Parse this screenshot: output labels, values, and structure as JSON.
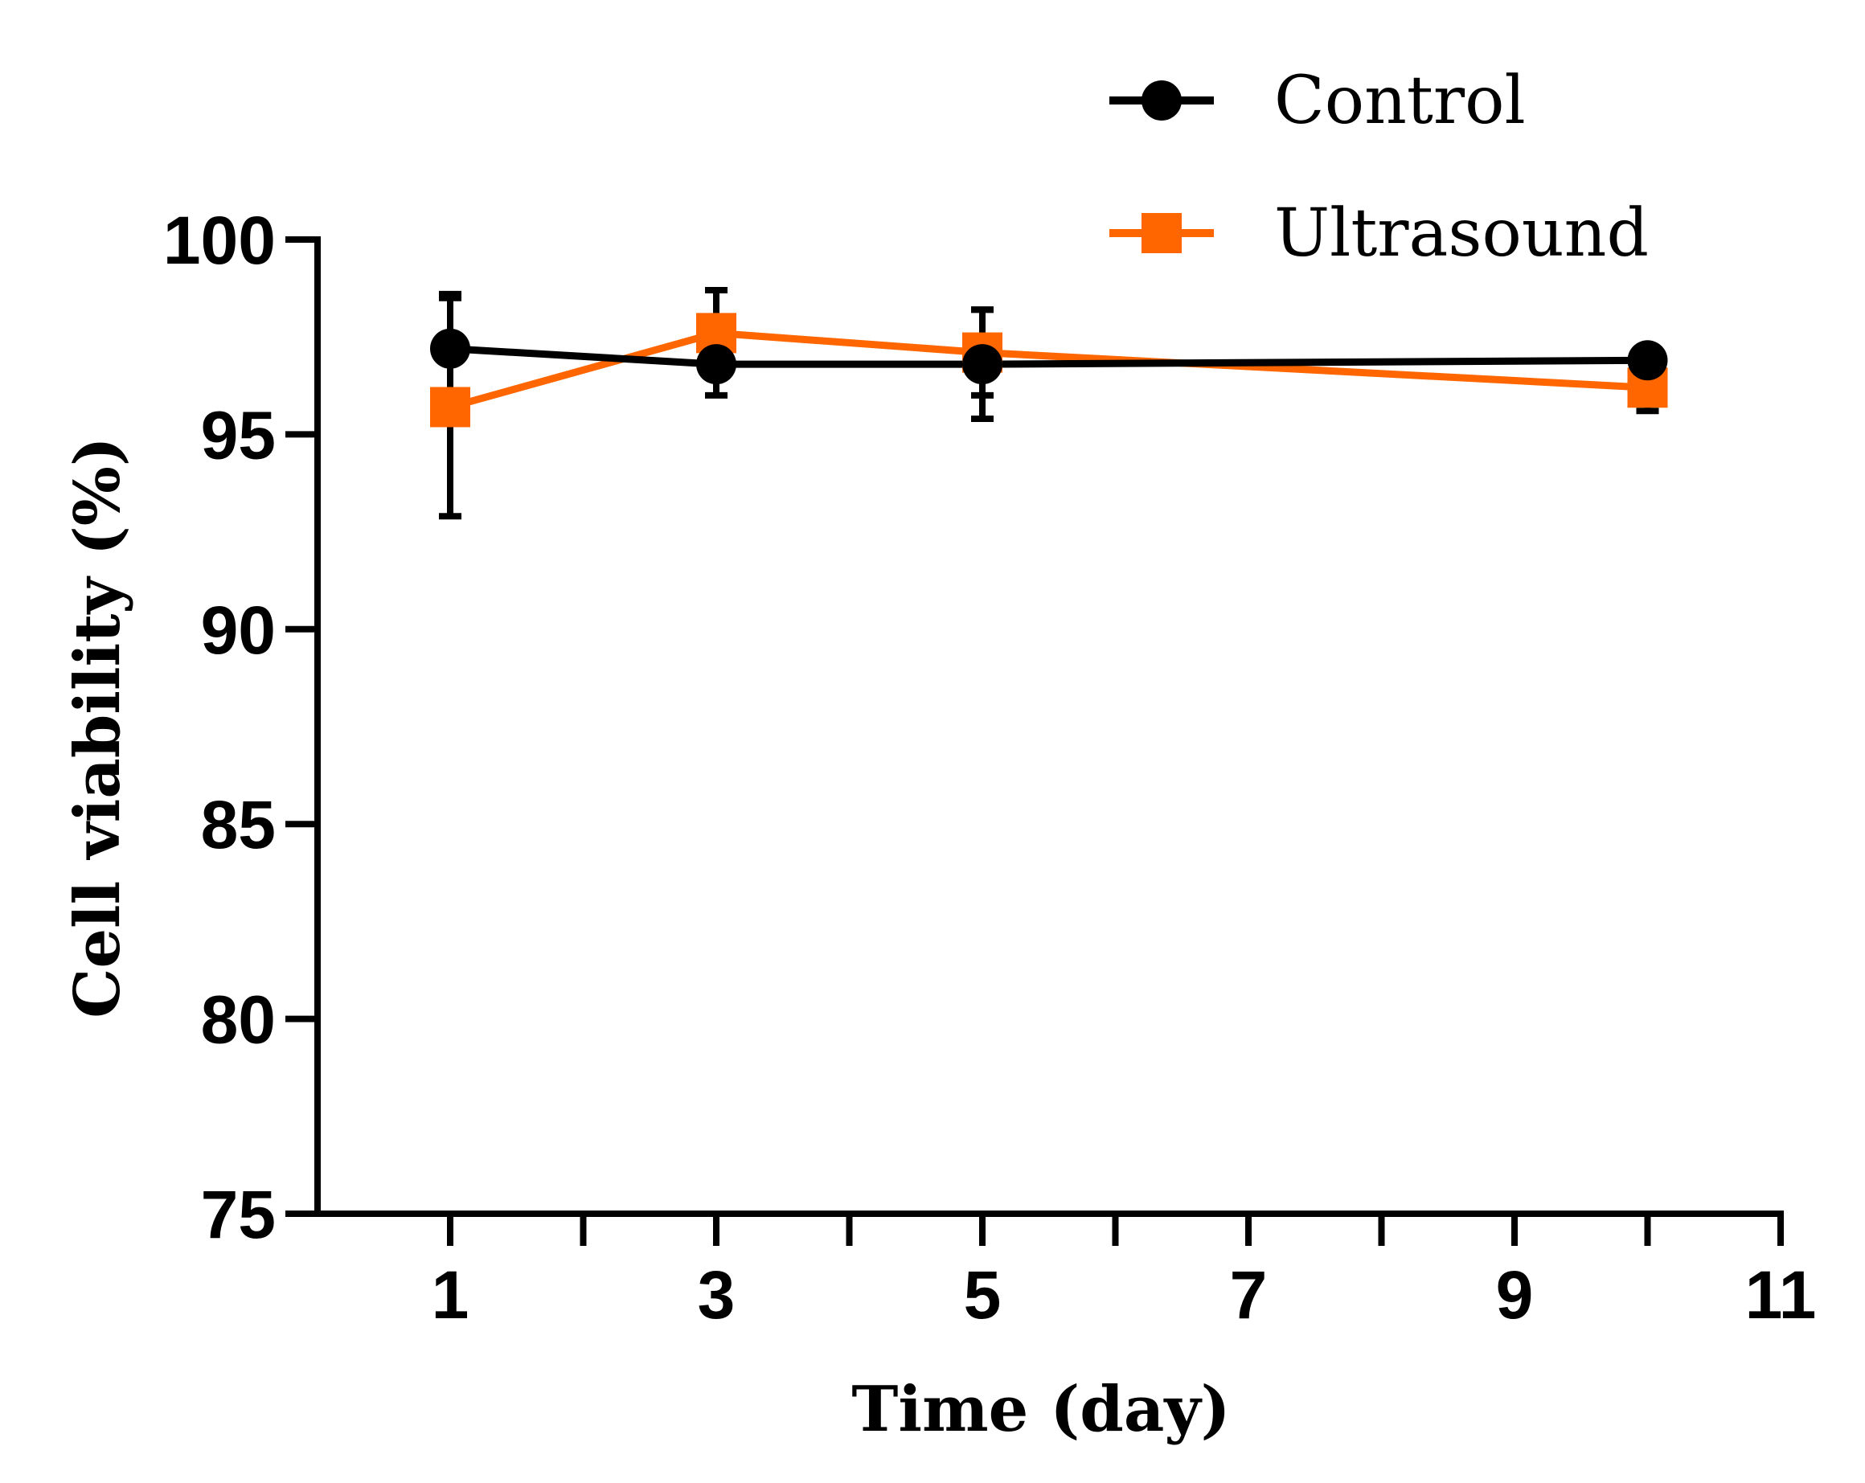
{
  "chart_data": {
    "type": "line",
    "title": "",
    "xlabel": "Time (day)",
    "ylabel": "Cell viability (%)",
    "xlim": [
      0,
      11
    ],
    "ylim": [
      75,
      100
    ],
    "x_ticks": [
      1,
      3,
      5,
      7,
      9,
      11
    ],
    "x_minor_ticks": [
      2,
      4,
      6,
      8,
      10
    ],
    "y_ticks": [
      75,
      80,
      85,
      90,
      95,
      100
    ],
    "grid": false,
    "legend_position": "top-right",
    "series": [
      {
        "name": "Control",
        "color": "#000000",
        "marker": "circle",
        "points": [
          {
            "x": 1,
            "y": 97.2,
            "err": 1.4
          },
          {
            "x": 3,
            "y": 96.8,
            "err": 0.8
          },
          {
            "x": 5,
            "y": 96.8,
            "err": 1.4
          },
          {
            "x": 10,
            "y": 96.9,
            "err": 0.3
          }
        ]
      },
      {
        "name": "Ultrasound",
        "color": "#FF6600",
        "marker": "square",
        "points": [
          {
            "x": 1,
            "y": 95.7,
            "err": 2.8
          },
          {
            "x": 3,
            "y": 97.6,
            "err": 1.1
          },
          {
            "x": 5,
            "y": 97.1,
            "err": 1.1
          },
          {
            "x": 10,
            "y": 96.2,
            "err": 0.6
          }
        ]
      }
    ]
  }
}
